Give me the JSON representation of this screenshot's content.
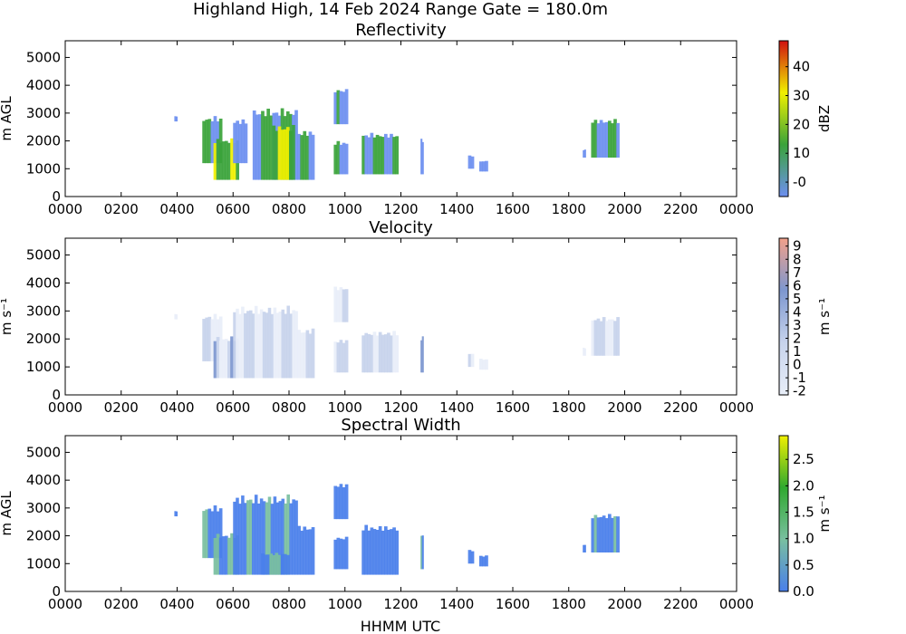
{
  "figure": {
    "suptitle": "Highland High, 14 Feb 2024 Range Gate = 180.0m",
    "xlabel": "HHMM UTC"
  },
  "chart_data": [
    {
      "type": "heatmap",
      "title": "Reflectivity",
      "ylabel": "m AGL",
      "colorbar_label": "dBZ",
      "colorbar_ticks": [
        "-0",
        "10",
        "20",
        "30",
        "40"
      ],
      "colorbar_range": [
        -5,
        49
      ],
      "xticks": [
        "0000",
        "0200",
        "0400",
        "0600",
        "0800",
        "1000",
        "1200",
        "1400",
        "1600",
        "1800",
        "2000",
        "2200",
        "0000"
      ],
      "yticks": [
        "0",
        "1000",
        "2000",
        "3000",
        "4000",
        "5000"
      ],
      "xlim_hours": [
        0,
        24
      ],
      "ylim": [
        0,
        5600
      ],
      "colors": {
        "low": "#6d8ff0",
        "mid": "#3aa33a",
        "high": "#f0f000",
        "peak": "#d01010"
      },
      "echoes": [
        {
          "t0": 3.9,
          "t1": 4.0,
          "z0": 2700,
          "z1": 2900,
          "level": 0.1
        },
        {
          "t0": 4.9,
          "t1": 5.6,
          "z0": 1200,
          "z1": 2900,
          "level": 0.4
        },
        {
          "t0": 5.3,
          "t1": 6.2,
          "z0": 600,
          "z1": 2100,
          "level": 0.6
        },
        {
          "t0": 6.0,
          "t1": 6.5,
          "z0": 1200,
          "z1": 2800,
          "level": 0.2
        },
        {
          "t0": 6.7,
          "t1": 8.3,
          "z0": 600,
          "z1": 3200,
          "level": 0.45
        },
        {
          "t0": 7.4,
          "t1": 8.2,
          "z0": 600,
          "z1": 2600,
          "level": 0.75
        },
        {
          "t0": 8.3,
          "t1": 8.9,
          "z0": 600,
          "z1": 2400,
          "level": 0.3
        },
        {
          "t0": 9.6,
          "t1": 10.1,
          "z0": 2600,
          "z1": 3900,
          "level": 0.15
        },
        {
          "t0": 9.6,
          "t1": 10.1,
          "z0": 800,
          "z1": 2000,
          "level": 0.3
        },
        {
          "t0": 10.6,
          "t1": 11.9,
          "z0": 800,
          "z1": 2300,
          "level": 0.35
        },
        {
          "t0": 12.7,
          "t1": 12.8,
          "z0": 800,
          "z1": 2100,
          "level": 0.3
        },
        {
          "t0": 14.4,
          "t1": 14.6,
          "z0": 1000,
          "z1": 1500,
          "level": 0.1
        },
        {
          "t0": 14.8,
          "t1": 15.1,
          "z0": 900,
          "z1": 1300,
          "level": 0.1
        },
        {
          "t0": 18.5,
          "t1": 18.6,
          "z0": 1400,
          "z1": 1700,
          "level": 0.1
        },
        {
          "t0": 18.8,
          "t1": 19.8,
          "z0": 1400,
          "z1": 2800,
          "level": 0.35
        }
      ]
    },
    {
      "type": "heatmap",
      "title": "Velocity",
      "ylabel": "m s⁻¹",
      "colorbar_label": "m s⁻¹",
      "colorbar_ticks": [
        "-2",
        "-1",
        "0",
        "1",
        "2",
        "3",
        "4",
        "5",
        "6",
        "7",
        "8",
        "9"
      ],
      "colorbar_range": [
        -2.3,
        9.6
      ],
      "xticks": [
        "0000",
        "0200",
        "0400",
        "0600",
        "0800",
        "1000",
        "1200",
        "1400",
        "1600",
        "1800",
        "2000",
        "2200",
        "0000"
      ],
      "yticks": [
        "0",
        "1000",
        "2000",
        "3000",
        "4000",
        "5000"
      ],
      "xlim_hours": [
        0,
        24
      ],
      "ylim": [
        0,
        5600
      ],
      "colors": {
        "low": "#e8eef8",
        "mid": "#c7d3ec",
        "high": "#7d97cf",
        "peak": "#f1a08a"
      },
      "echoes": [
        {
          "t0": 3.9,
          "t1": 4.0,
          "z0": 2700,
          "z1": 2900,
          "level": 0.1
        },
        {
          "t0": 4.9,
          "t1": 5.6,
          "z0": 1200,
          "z1": 2900,
          "level": 0.3
        },
        {
          "t0": 5.3,
          "t1": 6.2,
          "z0": 600,
          "z1": 2100,
          "level": 0.5
        },
        {
          "t0": 6.0,
          "t1": 8.3,
          "z0": 600,
          "z1": 3200,
          "level": 0.35
        },
        {
          "t0": 8.3,
          "t1": 8.9,
          "z0": 600,
          "z1": 2400,
          "level": 0.4
        },
        {
          "t0": 9.6,
          "t1": 10.1,
          "z0": 2600,
          "z1": 3900,
          "level": 0.2
        },
        {
          "t0": 9.6,
          "t1": 10.1,
          "z0": 800,
          "z1": 2000,
          "level": 0.4
        },
        {
          "t0": 10.6,
          "t1": 11.9,
          "z0": 800,
          "z1": 2300,
          "level": 0.45
        },
        {
          "t0": 12.7,
          "t1": 12.8,
          "z0": 800,
          "z1": 2100,
          "level": 0.6
        },
        {
          "t0": 14.4,
          "t1": 14.6,
          "z0": 1000,
          "z1": 1500,
          "level": 0.3
        },
        {
          "t0": 14.8,
          "t1": 15.1,
          "z0": 900,
          "z1": 1300,
          "level": 0.3
        },
        {
          "t0": 18.5,
          "t1": 18.6,
          "z0": 1400,
          "z1": 1700,
          "level": 0.4
        },
        {
          "t0": 18.8,
          "t1": 19.8,
          "z0": 1400,
          "z1": 2800,
          "level": 0.35
        }
      ]
    },
    {
      "type": "heatmap",
      "title": "Spectral Width",
      "ylabel": "m AGL",
      "colorbar_label": "m s⁻¹",
      "colorbar_ticks": [
        "0.0",
        "0.5",
        "1.0",
        "1.5",
        "2.0",
        "2.5"
      ],
      "colorbar_range": [
        0,
        2.95
      ],
      "xticks": [
        "0000",
        "0200",
        "0400",
        "0600",
        "0800",
        "1000",
        "1200",
        "1400",
        "1600",
        "1800",
        "2000",
        "2200",
        "0000"
      ],
      "yticks": [
        "0",
        "1000",
        "2000",
        "3000",
        "4000",
        "5000"
      ],
      "xlim_hours": [
        0,
        24
      ],
      "ylim": [
        0,
        5600
      ],
      "colors": {
        "low": "#4a7fea",
        "mid": "#79bfa0",
        "high": "#2fa92f",
        "peak": "#f0f000"
      },
      "echoes": [
        {
          "t0": 3.9,
          "t1": 4.0,
          "z0": 2700,
          "z1": 2900,
          "level": 0.1
        },
        {
          "t0": 4.9,
          "t1": 5.6,
          "z0": 1200,
          "z1": 3100,
          "level": 0.2
        },
        {
          "t0": 5.3,
          "t1": 6.2,
          "z0": 600,
          "z1": 2100,
          "level": 0.35
        },
        {
          "t0": 6.0,
          "t1": 8.3,
          "z0": 600,
          "z1": 3500,
          "level": 0.15
        },
        {
          "t0": 7.0,
          "t1": 8.0,
          "z0": 600,
          "z1": 1400,
          "level": 0.4
        },
        {
          "t0": 8.3,
          "t1": 8.9,
          "z0": 600,
          "z1": 2400,
          "level": 0.1
        },
        {
          "t0": 9.6,
          "t1": 10.1,
          "z0": 2600,
          "z1": 3900,
          "level": 0.1
        },
        {
          "t0": 9.6,
          "t1": 10.1,
          "z0": 800,
          "z1": 2000,
          "level": 0.1
        },
        {
          "t0": 10.6,
          "t1": 11.9,
          "z0": 600,
          "z1": 2400,
          "level": 0.1
        },
        {
          "t0": 12.7,
          "t1": 12.8,
          "z0": 800,
          "z1": 2100,
          "level": 0.4
        },
        {
          "t0": 14.4,
          "t1": 14.6,
          "z0": 1000,
          "z1": 1500,
          "level": 0.1
        },
        {
          "t0": 14.8,
          "t1": 15.1,
          "z0": 900,
          "z1": 1300,
          "level": 0.1
        },
        {
          "t0": 18.5,
          "t1": 18.6,
          "z0": 1400,
          "z1": 1700,
          "level": 0.1
        },
        {
          "t0": 18.8,
          "t1": 19.8,
          "z0": 1400,
          "z1": 2800,
          "level": 0.15
        }
      ]
    }
  ]
}
